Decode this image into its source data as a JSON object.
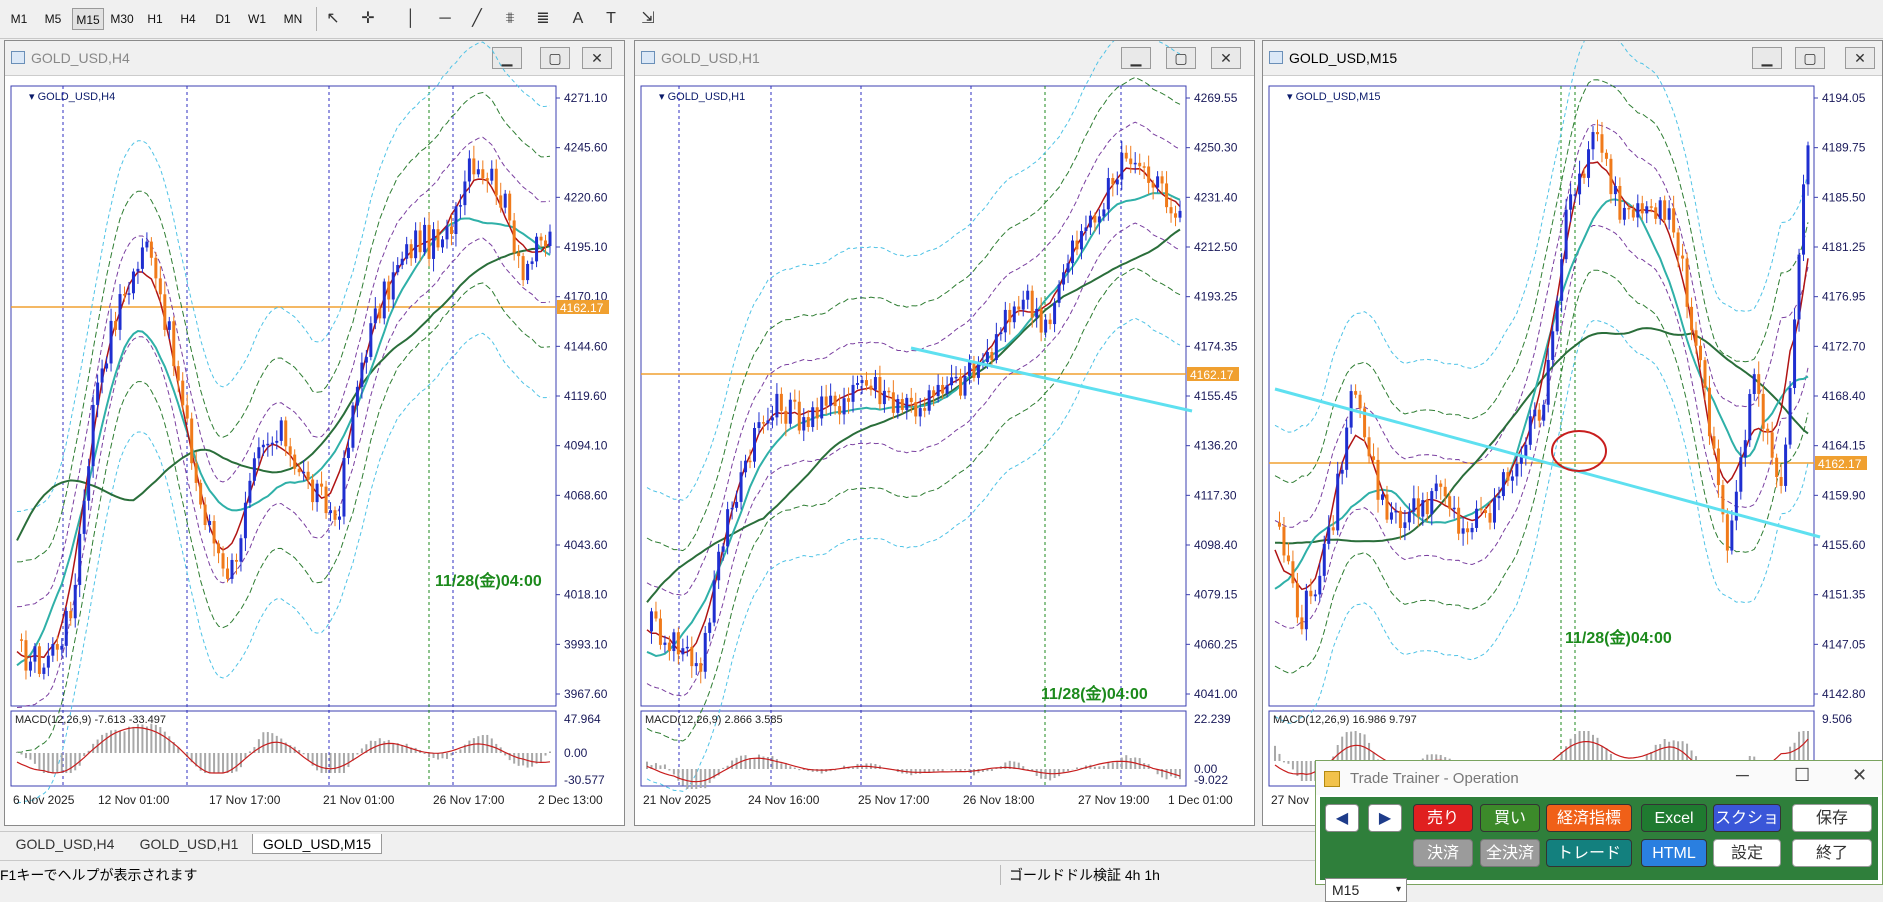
{
  "toolbar": {
    "timeframes": [
      "M1",
      "M5",
      "M15",
      "M30",
      "H1",
      "H4",
      "D1",
      "W1",
      "MN"
    ],
    "selected": "M15",
    "tools": [
      "cursor-icon",
      "crosshair-icon",
      "vertical-line-icon",
      "horizontal-line-icon",
      "trendline-icon",
      "fibo-channel-icon",
      "fibo-retracement-icon",
      "text-icon",
      "text-label-icon",
      "shapes-menu-icon"
    ],
    "tool_glyphs": [
      "↖",
      "✛",
      "│",
      "─",
      "╱",
      "⩨",
      "≣",
      "A",
      "T",
      "⇲"
    ]
  },
  "charts": [
    {
      "window_title": "GOLD_USD,H4",
      "label": "GOLD_USD,H4",
      "y_labels": [
        "4271.10",
        "4245.60",
        "4220.60",
        "4195.10",
        "4170.10",
        "4144.60",
        "4119.60",
        "4094.10",
        "4068.60",
        "4043.60",
        "4018.10",
        "3993.10",
        "3967.60"
      ],
      "price_tag": "4162.17",
      "x_labels": [
        "6 Nov 2025",
        "12 Nov 01:00",
        "17 Nov 17:00",
        "21 Nov 01:00",
        "26 Nov 17:00",
        "2 Dec 13:00"
      ],
      "macd_label": "MACD(12,26,9) -7.613 -33.497",
      "macd_y": [
        "47.964",
        "0.00",
        "-30.577"
      ],
      "annotation": "11/28(金)04:00",
      "active": false
    },
    {
      "window_title": "GOLD_USD,H1",
      "label": "GOLD_USD,H1",
      "y_labels": [
        "4269.55",
        "4250.30",
        "4231.40",
        "4212.50",
        "4193.25",
        "4174.35",
        "4155.45",
        "4136.20",
        "4117.30",
        "4098.40",
        "4079.15",
        "4060.25",
        "4041.00"
      ],
      "price_tag": "4162.17",
      "x_labels": [
        "21 Nov 2025",
        "24 Nov 16:00",
        "25 Nov 17:00",
        "26 Nov 18:00",
        "27 Nov 19:00",
        "1 Dec 01:00"
      ],
      "macd_label": "MACD(12,26,9) 2.866 3.585",
      "macd_y": [
        "22.239",
        "0.00",
        "-9.022"
      ],
      "annotation": "11/28(金)04:00",
      "active": false
    },
    {
      "window_title": "GOLD_USD,M15",
      "label": "GOLD_USD,M15",
      "y_labels": [
        "4194.05",
        "4189.75",
        "4185.50",
        "4181.25",
        "4176.95",
        "4172.70",
        "4168.40",
        "4164.15",
        "4159.90",
        "4155.60",
        "4151.35",
        "4147.05",
        "4142.80"
      ],
      "price_tag": "4162.17",
      "x_labels": [
        "27 Nov"
      ],
      "macd_label": "MACD(12,26,9) 16.986 9.797",
      "macd_y": [
        "9.506"
      ],
      "annotation": "11/28(金)04:00",
      "active": true
    }
  ],
  "tabs": [
    "GOLD_USD,H4",
    "GOLD_USD,H1",
    "GOLD_USD,M15"
  ],
  "active_tab": "GOLD_USD,M15",
  "status": {
    "help": "F1キーでヘルプが表示されます",
    "profile": "ゴールドドル検証 4h 1h"
  },
  "trader": {
    "title": "Trade Trainer - Operation",
    "prev": "◀",
    "next": "▶",
    "sell": "売り",
    "buy": "買い",
    "indicators": "経済指標",
    "excel": "Excel",
    "screenshot": "スクショ",
    "save": "保存",
    "timeframe": "M15",
    "settle": "決済",
    "settle_all": "全決済",
    "trade": "トレード",
    "html": "HTML",
    "settings": "設定",
    "exit": "終了"
  },
  "colors": {
    "bull": "#1f2fd0",
    "bear": "#f07a1a",
    "price_line": "#f0a030",
    "ma_fast": "#b01414",
    "ma_mid": "#2fb0a8",
    "ma_slow": "#2a6e3a",
    "bb1": "#7a3fa0",
    "bb2": "#2e7d32",
    "bb3": "#4fc3e6",
    "trendline": "#5ee0f0",
    "annotation": "#1c8a1c",
    "trader_panel": "#2f7f3b",
    "sell_btn": "#e02020",
    "buy_btn": "#3c8a2a",
    "indicator_btn": "#f06018",
    "excel_btn": "#1f7a30",
    "screenshot_btn": "#3a56d8",
    "trade_btn": "#13807e",
    "html_btn": "#2a7fe0"
  }
}
